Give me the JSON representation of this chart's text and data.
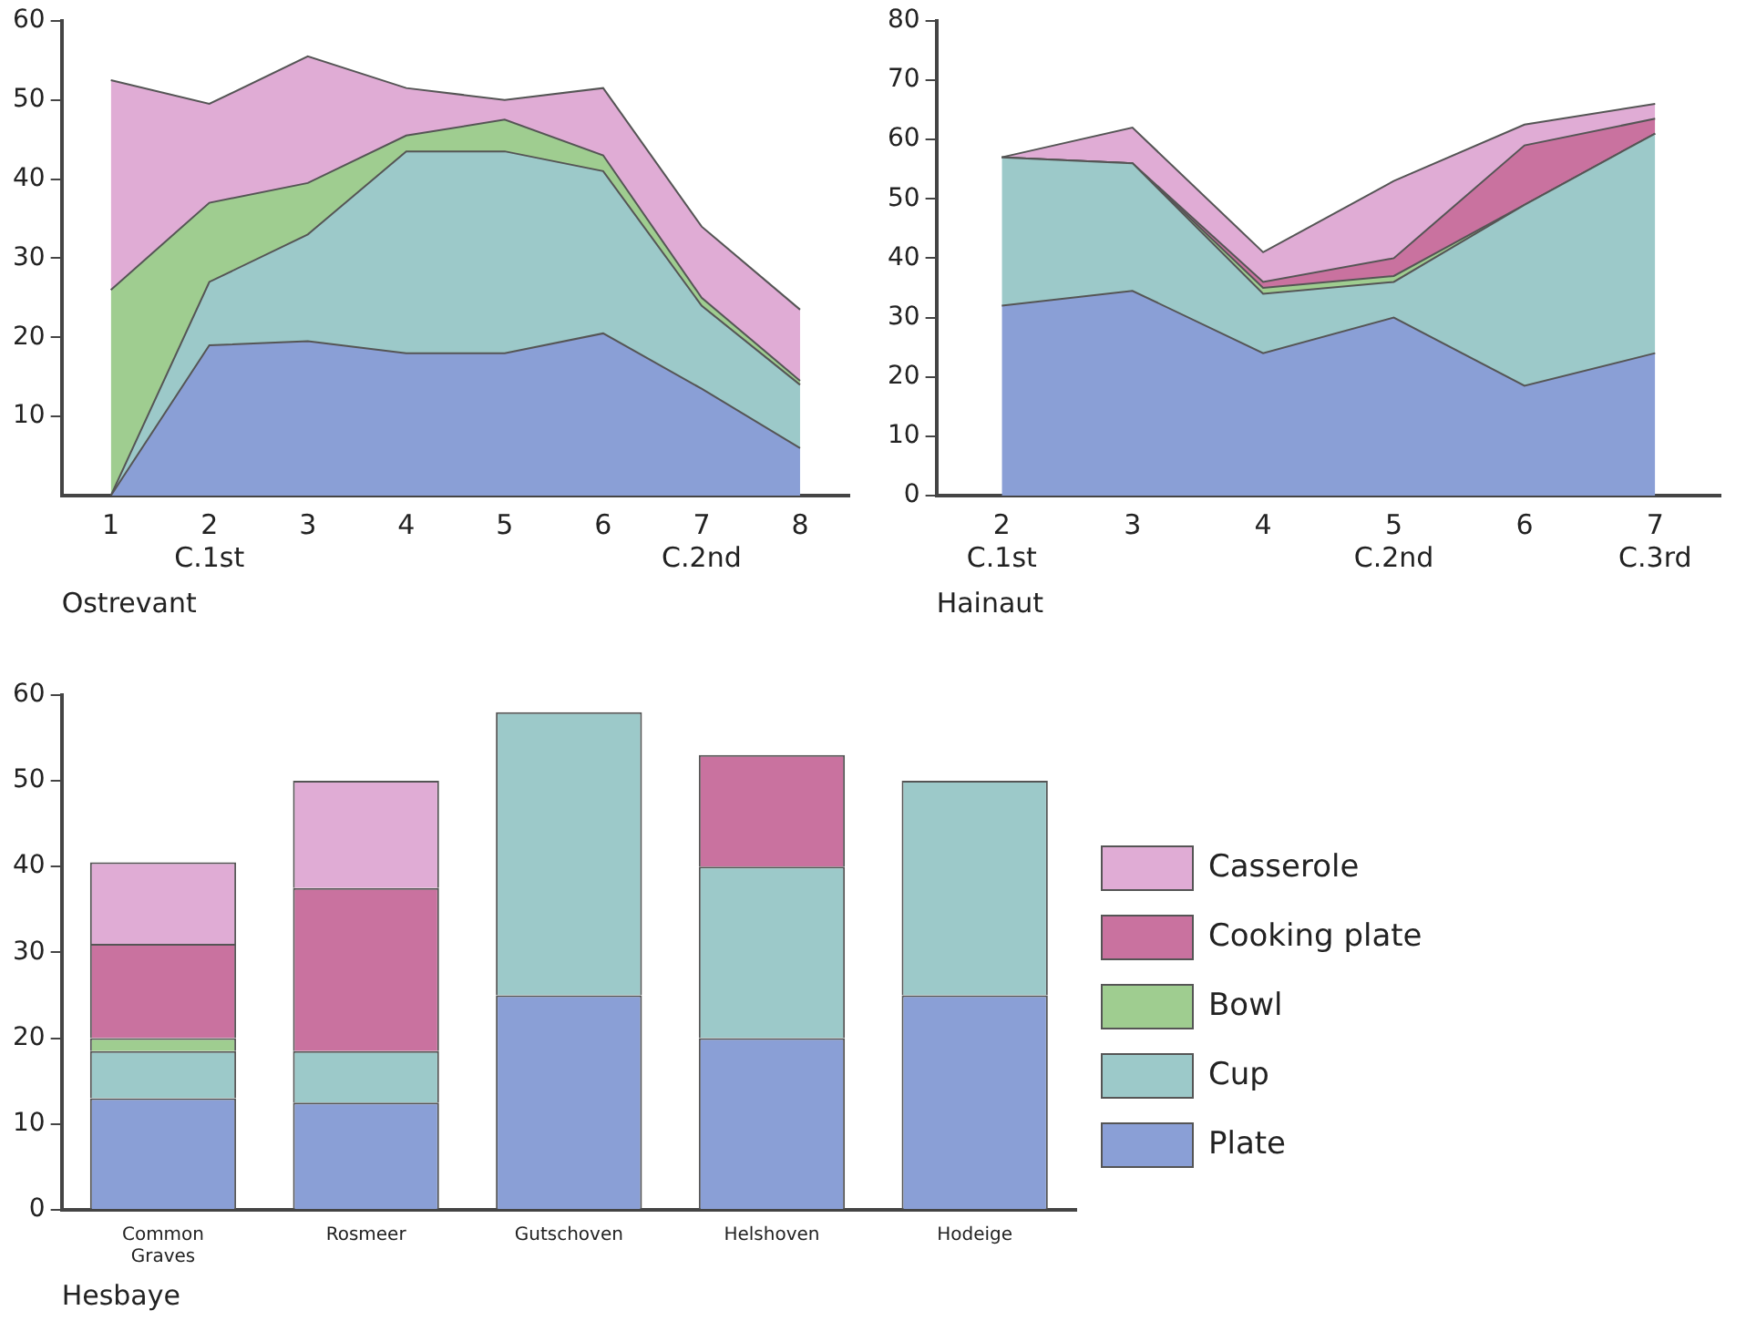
{
  "chart_data": [
    {
      "type": "area",
      "xlabel": "Ostrevant",
      "categories": [
        "1",
        "2 C.1st",
        "3",
        "4",
        "5",
        "6",
        "7 C.2nd",
        "8"
      ],
      "stacked": true,
      "ylim": [
        0,
        60
      ],
      "yticks": [
        10,
        20,
        30,
        40,
        50,
        60
      ],
      "grid": false,
      "legend": false,
      "series": [
        {
          "color": "#8a9fd6",
          "values": [
            0,
            19,
            19.5,
            18,
            18,
            20.5,
            13.5,
            6
          ]
        },
        {
          "color": "#9cc9c9",
          "values": [
            0,
            8,
            13.5,
            25.5,
            25.5,
            20.5,
            10.5,
            8
          ]
        },
        {
          "color": "#9fcd90",
          "values": [
            26,
            10,
            6.5,
            2,
            4,
            2,
            1,
            0.5
          ]
        },
        {
          "color": "#e0acd5",
          "values": [
            26.5,
            12.5,
            16,
            6,
            2.5,
            8.5,
            9,
            9
          ]
        }
      ]
    },
    {
      "type": "area",
      "xlabel": "Hainaut",
      "categories": [
        "2 C.1st",
        "3",
        "4",
        "5 C.2nd",
        "6",
        "7 C.3rd"
      ],
      "stacked": true,
      "ylim": [
        0,
        80
      ],
      "yticks": [
        0,
        10,
        20,
        30,
        40,
        50,
        60,
        70,
        80
      ],
      "grid": false,
      "legend": false,
      "series": [
        {
          "color": "#8a9fd6",
          "values": [
            32,
            34.5,
            24,
            30,
            18.5,
            24
          ]
        },
        {
          "color": "#9cc9c9",
          "values": [
            25,
            21.5,
            10,
            6,
            30.5,
            37
          ]
        },
        {
          "color": "#9fcd90",
          "values": [
            0,
            0,
            1,
            1,
            0,
            0
          ]
        },
        {
          "color": "#c9729f",
          "values": [
            0,
            0,
            1,
            3,
            10,
            2.5
          ]
        },
        {
          "color": "#e0acd5",
          "values": [
            0,
            6,
            5,
            13,
            3.5,
            2.5
          ]
        }
      ]
    },
    {
      "type": "bar",
      "xlabel": "Hesbaye",
      "categories": [
        "Common Graves",
        "Rosmeer",
        "Gutschoven",
        "Helshoven",
        "Hodeige"
      ],
      "stacked": true,
      "ylim": [
        0,
        60
      ],
      "yticks": [
        0,
        10,
        20,
        30,
        40,
        50,
        60
      ],
      "grid": false,
      "legend": "right",
      "series": [
        {
          "name": "Plate",
          "color": "#8a9fd6",
          "values": [
            13,
            12.5,
            25,
            20,
            25
          ]
        },
        {
          "name": "Cup",
          "color": "#9cc9c9",
          "values": [
            5.5,
            6,
            33,
            20,
            25
          ]
        },
        {
          "name": "Bowl",
          "color": "#9fcd90",
          "values": [
            1.5,
            0,
            0,
            0,
            0
          ]
        },
        {
          "name": "Cooking plate",
          "color": "#c9729f",
          "values": [
            11,
            19,
            0,
            13,
            0
          ]
        },
        {
          "name": "Casserole",
          "color": "#e0acd5",
          "values": [
            9.5,
            12.5,
            0,
            0,
            0
          ]
        }
      ]
    }
  ]
}
